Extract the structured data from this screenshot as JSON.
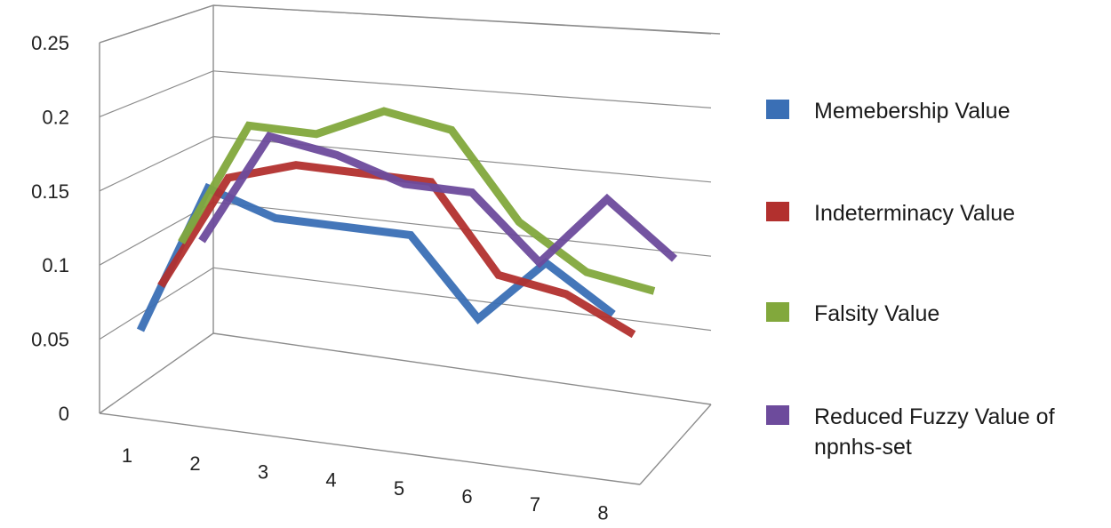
{
  "chart_data": {
    "type": "line",
    "title": "",
    "xlabel": "",
    "ylabel": "",
    "categories": [
      "1",
      "2",
      "3",
      "4",
      "5",
      "6",
      "7",
      "8"
    ],
    "y_ticks": [
      "0",
      "0.05",
      "0.1",
      "0.15",
      "0.2",
      "0.25"
    ],
    "ylim": [
      0,
      0.25
    ],
    "grid": true,
    "style": "3d-line",
    "legend_position": "right",
    "series": [
      {
        "name": "Memebership Value",
        "color": "#3a6fb5",
        "values": [
          0.04,
          0.18,
          0.16,
          0.16,
          0.16,
          0.09,
          0.15,
          0.11
        ]
      },
      {
        "name": "Indeterminacy Value",
        "color": "#b2302e",
        "values": [
          0.07,
          0.18,
          0.2,
          0.2,
          0.2,
          0.12,
          0.11,
          0.08
        ]
      },
      {
        "name": "Falsity Value",
        "color": "#82a83c",
        "values": [
          0.1,
          0.22,
          0.22,
          0.25,
          0.24,
          0.16,
          0.12,
          0.11
        ]
      },
      {
        "name": "Reduced Fuzzy Value of npnhs-set",
        "color": "#6d4b9c",
        "values": [
          0.09,
          0.2,
          0.19,
          0.17,
          0.17,
          0.11,
          0.18,
          0.13
        ]
      }
    ]
  }
}
